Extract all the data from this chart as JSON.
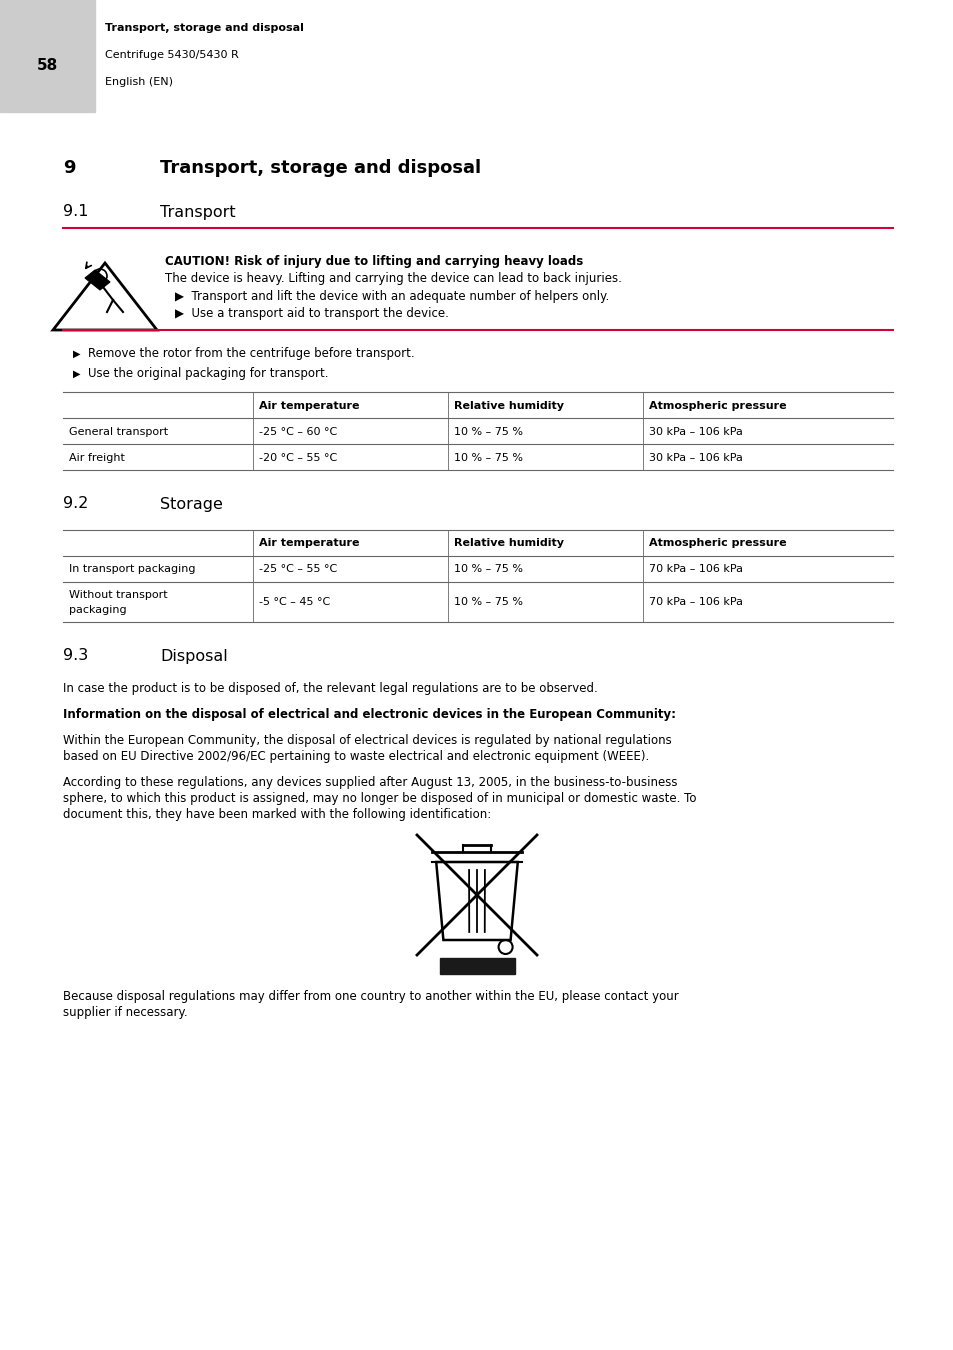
{
  "page_number": "58",
  "header_bold": "Transport, storage and disposal",
  "header_line2": "Centrifuge 5430/5430 R",
  "header_line3": "English (EN)",
  "caution_title": "CAUTION! Risk of injury due to lifting and carrying heavy loads",
  "caution_line1": "The device is heavy. Lifting and carrying the device can lead to back injuries.",
  "caution_bullet1": "Transport and lift the device with an adequate number of helpers only.",
  "caution_bullet2": "Use a transport aid to transport the device.",
  "bullet1": "Remove the rotor from the centrifuge before transport.",
  "bullet2": "Use the original packaging for transport.",
  "table1_header": [
    "",
    "Air temperature",
    "Relative humidity",
    "Atmospheric pressure"
  ],
  "table1_rows": [
    [
      "General transport",
      "-25 °C – 60 °C",
      "10 % – 75 %",
      "30 kPa – 106 kPa"
    ],
    [
      "Air freight",
      "-20 °C – 55 °C",
      "10 % – 75 %",
      "30 kPa – 106 kPa"
    ]
  ],
  "table2_header": [
    "",
    "Air temperature",
    "Relative humidity",
    "Atmospheric pressure"
  ],
  "table2_rows": [
    [
      "In transport packaging",
      "-25 °C – 55 °C",
      "10 % – 75 %",
      "70 kPa – 106 kPa"
    ],
    [
      "Without transport\npackaging",
      "-5 °C – 45 °C",
      "10 % – 75 %",
      "70 kPa – 106 kPa"
    ]
  ],
  "disposal_p1": "In case the product is to be disposed of, the relevant legal regulations are to be observed.",
  "disposal_bold": "Information on the disposal of electrical and electronic devices in the European Community:",
  "disposal_p2a": "Within the European Community, the disposal of electrical devices is regulated by national regulations",
  "disposal_p2b": "based on EU Directive 2002/96/EC pertaining to waste electrical and electronic equipment (WEEE).",
  "disposal_p3a": "According to these regulations, any devices supplied after August 13, 2005, in the business-to-business",
  "disposal_p3b": "sphere, to which this product is assigned, may no longer be disposed of in municipal or domestic waste. To",
  "disposal_p3c": "document this, they have been marked with the following identification:",
  "disposal_p4a": "Because disposal regulations may differ from one country to another within the EU, please contact your",
  "disposal_p4b": "supplier if necessary.",
  "bg_color": "#ffffff",
  "header_bg": "#cccccc",
  "text_color": "#1a1a1a",
  "red_line_color": "#d4003c",
  "table_line_color": "#666666",
  "black_bar_color": "#1a1a1a"
}
